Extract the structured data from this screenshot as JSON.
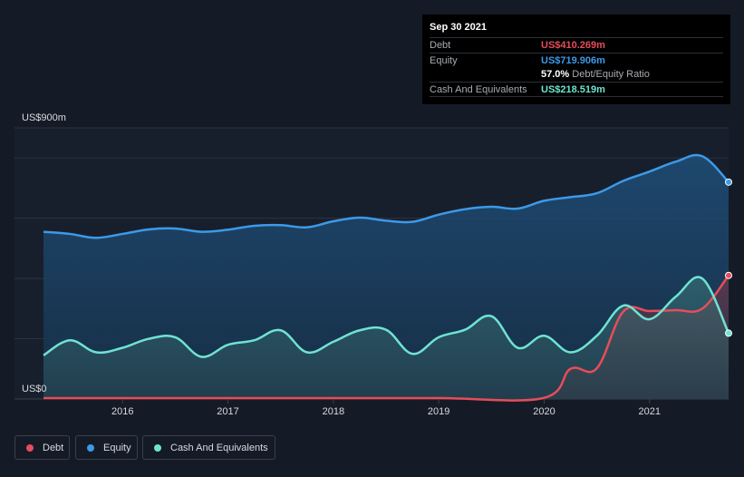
{
  "tooltip": {
    "date": "Sep 30 2021",
    "rows": [
      {
        "label": "Debt",
        "value": "US$410.269m",
        "color": "#e64d5a"
      },
      {
        "label": "Equity",
        "value": "US$719.906m",
        "color": "#3c9ae8"
      },
      {
        "label": "",
        "value": "57.0%",
        "extra": "Debt/Equity Ratio",
        "color": "#ffffff"
      },
      {
        "label": "Cash And Equivalents",
        "value": "US$218.519m",
        "color": "#6fe3d3"
      }
    ]
  },
  "legend": [
    {
      "label": "Debt",
      "color": "#e64d5a"
    },
    {
      "label": "Equity",
      "color": "#3c9ae8"
    },
    {
      "label": "Cash And Equivalents",
      "color": "#6fe3d3"
    }
  ],
  "chart_data": {
    "type": "area",
    "y_top_label": "US$900m",
    "y_bottom_label": "US$0",
    "ylim": [
      0,
      900
    ],
    "xlim": [
      2015.25,
      2021.75
    ],
    "x_ticks": [
      2016,
      2017,
      2018,
      2019,
      2020,
      2021
    ],
    "grid": true,
    "legend_placement": "bottom-left",
    "series": [
      {
        "name": "Equity",
        "color": "#3c9ae8",
        "points": [
          [
            2015.25,
            555
          ],
          [
            2015.5,
            548
          ],
          [
            2015.75,
            535
          ],
          [
            2016.0,
            548
          ],
          [
            2016.25,
            563
          ],
          [
            2016.5,
            566
          ],
          [
            2016.75,
            555
          ],
          [
            2017.0,
            562
          ],
          [
            2017.25,
            575
          ],
          [
            2017.5,
            577
          ],
          [
            2017.75,
            570
          ],
          [
            2018.0,
            590
          ],
          [
            2018.25,
            602
          ],
          [
            2018.5,
            592
          ],
          [
            2018.75,
            588
          ],
          [
            2019.0,
            612
          ],
          [
            2019.25,
            630
          ],
          [
            2019.5,
            638
          ],
          [
            2019.75,
            632
          ],
          [
            2020.0,
            658
          ],
          [
            2020.25,
            670
          ],
          [
            2020.5,
            683
          ],
          [
            2020.75,
            724
          ],
          [
            2021.0,
            755
          ],
          [
            2021.25,
            788
          ],
          [
            2021.5,
            806
          ],
          [
            2021.75,
            719.906
          ]
        ]
      },
      {
        "name": "Debt",
        "color": "#e64d5a",
        "points": [
          [
            2015.25,
            3
          ],
          [
            2016.0,
            3
          ],
          [
            2017.0,
            3
          ],
          [
            2018.0,
            3
          ],
          [
            2019.0,
            3
          ],
          [
            2019.99,
            3
          ],
          [
            2020.25,
            100
          ],
          [
            2020.5,
            102
          ],
          [
            2020.75,
            290
          ],
          [
            2021.0,
            292
          ],
          [
            2021.25,
            295
          ],
          [
            2021.5,
            300
          ],
          [
            2021.75,
            410.269
          ]
        ]
      },
      {
        "name": "Cash And Equivalents",
        "color": "#6fe3d3",
        "points": [
          [
            2015.25,
            145
          ],
          [
            2015.5,
            195
          ],
          [
            2015.75,
            155
          ],
          [
            2016.0,
            170
          ],
          [
            2016.25,
            200
          ],
          [
            2016.5,
            205
          ],
          [
            2016.75,
            140
          ],
          [
            2017.0,
            180
          ],
          [
            2017.25,
            195
          ],
          [
            2017.5,
            228
          ],
          [
            2017.75,
            155
          ],
          [
            2018.0,
            190
          ],
          [
            2018.25,
            228
          ],
          [
            2018.5,
            230
          ],
          [
            2018.75,
            150
          ],
          [
            2019.0,
            205
          ],
          [
            2019.25,
            230
          ],
          [
            2019.5,
            275
          ],
          [
            2019.75,
            170
          ],
          [
            2020.0,
            210
          ],
          [
            2020.25,
            155
          ],
          [
            2020.5,
            210
          ],
          [
            2020.75,
            310
          ],
          [
            2021.0,
            265
          ],
          [
            2021.25,
            340
          ],
          [
            2021.5,
            400
          ],
          [
            2021.75,
            218.519
          ]
        ]
      }
    ]
  }
}
